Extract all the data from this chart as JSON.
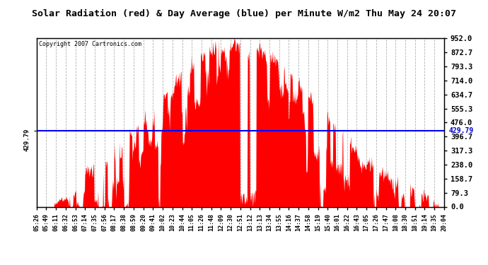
{
  "title": "Solar Radiation (red) & Day Average (blue) per Minute W/m2 Thu May 24 20:07",
  "copyright": "Copyright 2007 Cartronics.com",
  "day_average": 429.79,
  "y_right_ticks": [
    0.0,
    79.3,
    158.7,
    238.0,
    317.3,
    396.7,
    476.0,
    555.3,
    634.7,
    714.0,
    793.3,
    872.7,
    952.0
  ],
  "y_left_label": "429.79",
  "ymax": 952.0,
  "ymin": 0.0,
  "bg_color": "#ffffff",
  "plot_bg_color": "#ffffff",
  "grid_color": "#aaaaaa",
  "bar_color": "#ff0000",
  "avg_line_color": "#0000ff",
  "x_labels": [
    "05:26",
    "05:49",
    "06:11",
    "06:32",
    "06:53",
    "07:14",
    "07:35",
    "07:56",
    "08:17",
    "08:38",
    "08:59",
    "09:20",
    "09:41",
    "10:02",
    "10:23",
    "10:44",
    "11:05",
    "11:26",
    "11:48",
    "12:09",
    "12:30",
    "12:51",
    "13:12",
    "13:13",
    "13:34",
    "13:55",
    "14:16",
    "14:37",
    "14:58",
    "15:19",
    "15:40",
    "16:01",
    "16:22",
    "16:43",
    "17:05",
    "17:26",
    "17:47",
    "18:08",
    "18:30",
    "18:51",
    "19:14",
    "19:35",
    "20:04"
  ]
}
